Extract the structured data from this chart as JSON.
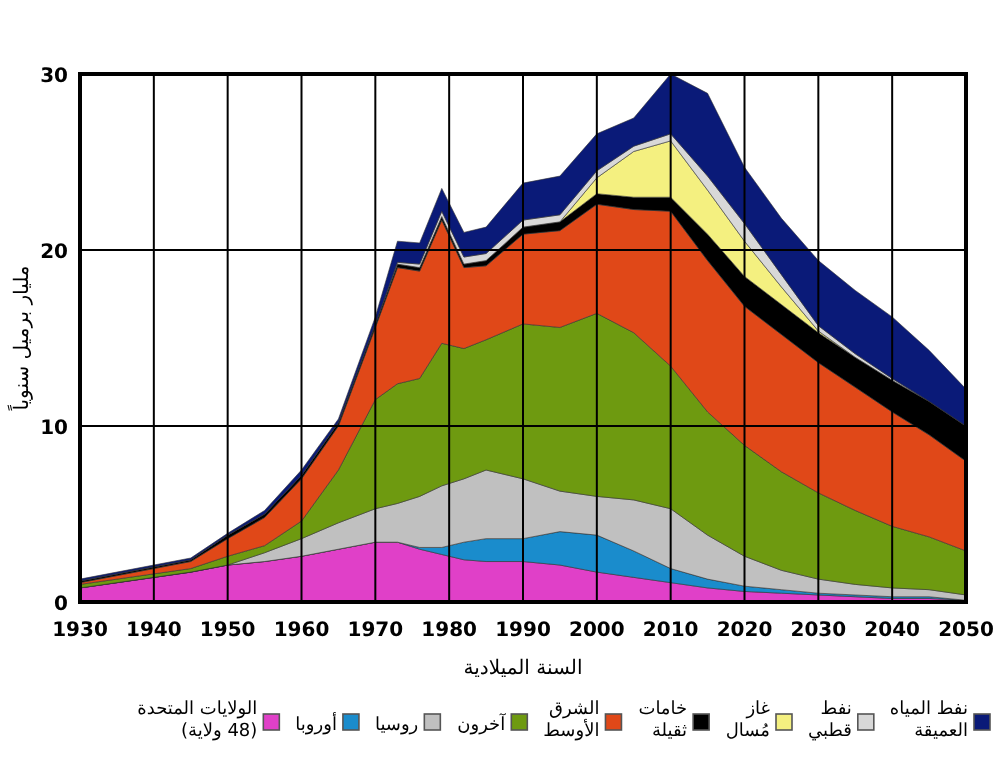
{
  "chart_data": {
    "type": "area",
    "stacked": true,
    "xlabel": "السنة الميلادية",
    "ylabel": "مليار برميل سنوياً",
    "x": [
      1930,
      1940,
      1945,
      1950,
      1955,
      1960,
      1965,
      1970,
      1973,
      1976,
      1979,
      1982,
      1985,
      1990,
      1995,
      2000,
      2005,
      2010,
      2015,
      2020,
      2025,
      2030,
      2035,
      2040,
      2045,
      2050
    ],
    "xlim": [
      1930,
      2050
    ],
    "xticks": [
      1930,
      1940,
      1950,
      1960,
      1970,
      1980,
      1990,
      2000,
      2010,
      2020,
      2030,
      2040,
      2050
    ],
    "ylim": [
      0,
      30
    ],
    "yticks": [
      0,
      10,
      20,
      30
    ],
    "grid": true,
    "legend": "bottom",
    "series": [
      {
        "name": "الولايات المتحدة (48 ولاية)",
        "color": "#e040c8",
        "values": [
          0.8,
          1.4,
          1.7,
          2.1,
          2.3,
          2.6,
          3.0,
          3.4,
          3.4,
          3.0,
          2.7,
          2.4,
          2.3,
          2.3,
          2.1,
          1.7,
          1.4,
          1.1,
          0.8,
          0.6,
          0.5,
          0.4,
          0.3,
          0.2,
          0.2,
          0.1
        ]
      },
      {
        "name": "أوروبا",
        "color": "#1a8ccc",
        "values": [
          0,
          0,
          0,
          0,
          0,
          0,
          0,
          0,
          0,
          0.1,
          0.4,
          1.0,
          1.3,
          1.3,
          1.9,
          2.1,
          1.5,
          0.8,
          0.5,
          0.3,
          0.2,
          0.1,
          0.1,
          0.1,
          0.1,
          0
        ]
      },
      {
        "name": "روسيا",
        "color": "#c0c0c0",
        "values": [
          0,
          0,
          0,
          0,
          0.5,
          1.0,
          1.5,
          1.9,
          2.2,
          2.9,
          3.5,
          3.6,
          3.9,
          3.4,
          2.3,
          2.2,
          2.9,
          3.4,
          2.5,
          1.7,
          1.1,
          0.8,
          0.6,
          0.5,
          0.4,
          0.3
        ]
      },
      {
        "name": "آخرون",
        "color": "#6e9a10",
        "values": [
          0.2,
          0.2,
          0.2,
          0.5,
          0.4,
          1.0,
          3.0,
          6.2,
          6.8,
          6.7,
          8.1,
          7.4,
          7.4,
          8.8,
          9.3,
          10.4,
          9.5,
          8.1,
          7.0,
          6.3,
          5.6,
          4.9,
          4.2,
          3.5,
          3.0,
          2.5
        ]
      },
      {
        "name": "الشرق الأوسط",
        "color": "#e04818",
        "values": [
          0.1,
          0.3,
          0.4,
          1.0,
          1.6,
          2.4,
          2.5,
          4.1,
          6.6,
          6.1,
          7.0,
          4.6,
          4.2,
          5.1,
          5.5,
          6.2,
          7.0,
          8.8,
          8.6,
          7.9,
          7.8,
          7.4,
          7.0,
          6.5,
          5.8,
          5.1
        ]
      },
      {
        "name": "خامات ثقيلة",
        "color": "#000000",
        "values": [
          0.1,
          0.1,
          0.1,
          0.2,
          0.2,
          0.2,
          0.2,
          0.2,
          0.2,
          0.2,
          0.2,
          0.2,
          0.3,
          0.4,
          0.5,
          0.6,
          0.7,
          0.8,
          1.5,
          1.7,
          1.7,
          1.7,
          1.7,
          1.8,
          1.9,
          2.0
        ]
      },
      {
        "name": "غاز مُسال",
        "color": "#f4f080",
        "values": [
          0,
          0,
          0,
          0,
          0,
          0,
          0,
          0,
          0,
          0,
          0,
          0,
          0,
          0,
          0,
          0.9,
          2.6,
          3.2,
          2.5,
          2.0,
          1.0,
          0.1,
          0,
          0,
          0,
          0
        ]
      },
      {
        "name": "نفط قطبي",
        "color": "#d8d8d8",
        "values": [
          0,
          0,
          0,
          0,
          0,
          0,
          0,
          0,
          0.1,
          0.2,
          0.3,
          0.4,
          0.4,
          0.4,
          0.4,
          0.4,
          0.3,
          0.4,
          0.8,
          1.0,
          0.7,
          0.3,
          0.2,
          0.1,
          0,
          0
        ]
      },
      {
        "name": "نفط المياه العميقة",
        "color": "#0a1a78",
        "values": [
          0.1,
          0.1,
          0.1,
          0.1,
          0.2,
          0.3,
          0.2,
          0.4,
          1.2,
          1.2,
          1.3,
          1.4,
          1.5,
          2.1,
          2.2,
          2.1,
          1.6,
          3.4,
          4.7,
          3.2,
          3.2,
          3.7,
          3.6,
          3.5,
          2.9,
          2.1
        ]
      }
    ]
  }
}
